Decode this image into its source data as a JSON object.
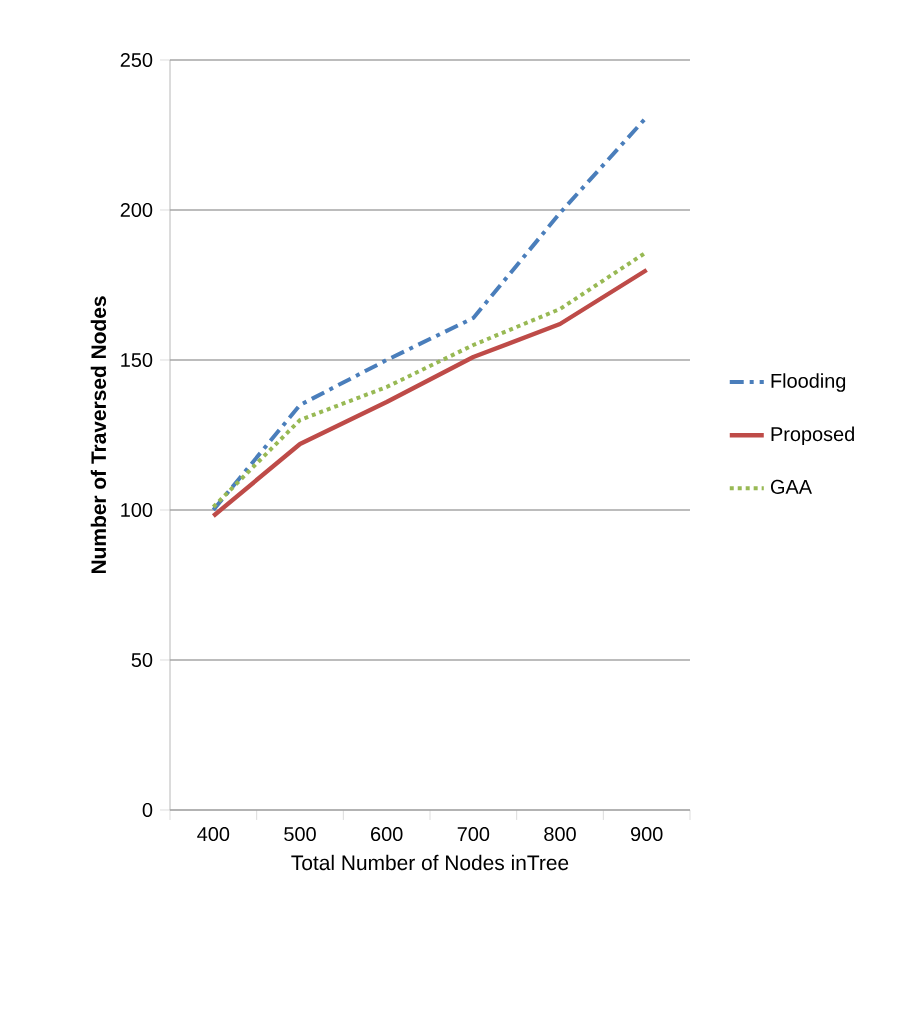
{
  "chart_data": {
    "type": "line",
    "xlabel": "Total Number of Nodes inTree",
    "ylabel": "Number of Traversed  Nodes",
    "categories": [
      "400",
      "500",
      "600",
      "700",
      "800",
      "900"
    ],
    "series": [
      {
        "name": "Flooding",
        "color": "#4a7ebb",
        "line_style": "dashed",
        "values": [
          100,
          135,
          150,
          164,
          199,
          231
        ]
      },
      {
        "name": "Proposed",
        "color": "#be4b48",
        "line_style": "solid",
        "values": [
          98,
          122,
          136,
          151,
          162,
          180
        ]
      },
      {
        "name": "GAA",
        "color": "#98b954",
        "line_style": "dotted",
        "values": [
          101,
          130,
          141,
          155,
          167,
          186
        ]
      }
    ],
    "ylim": [
      0,
      250
    ],
    "yticks": [
      0,
      50,
      100,
      150,
      200,
      250
    ],
    "grid": "y",
    "legend": "right",
    "marker": "none"
  }
}
